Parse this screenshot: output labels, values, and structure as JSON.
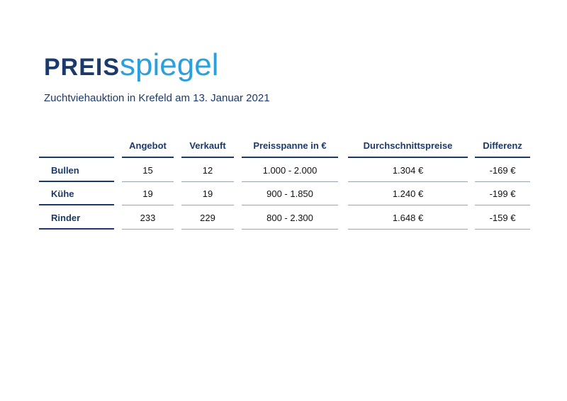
{
  "header": {
    "title_bold": "PREIS",
    "title_light": "spiegel",
    "subtitle": "Zuchtviehauktion in Krefeld am 13. Januar 2021"
  },
  "table": {
    "columns": [
      "Angebot",
      "Verkauft",
      "Preisspanne in €",
      "Durchschnittspreise",
      "Differenz"
    ],
    "rows": [
      {
        "label": "Bullen",
        "cells": [
          "15",
          "12",
          "1.000 - 2.000",
          "1.304 €",
          "-169 €"
        ]
      },
      {
        "label": "Kühe",
        "cells": [
          "19",
          "19",
          "900 - 1.850",
          "1.240 €",
          "-199 €"
        ]
      },
      {
        "label": "Rinder",
        "cells": [
          "233",
          "229",
          "800 - 2.300",
          "1.648 €",
          "-159 €"
        ]
      }
    ]
  },
  "colors": {
    "navy": "#1b3a6b",
    "accent": "#2aa0dc"
  }
}
